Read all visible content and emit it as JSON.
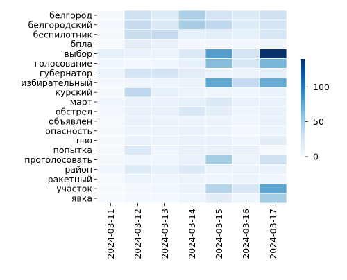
{
  "chart_data": {
    "type": "heatmap",
    "title": "",
    "xlabel": "",
    "ylabel": "",
    "x_categories": [
      "2024-03-11",
      "2024-03-12",
      "2024-03-13",
      "2024-03-14",
      "2024-03-15",
      "2024-03-16",
      "2024-03-17"
    ],
    "y_categories": [
      "белгород",
      "белгородский",
      "беспилотник",
      "бпла",
      "выбор",
      "голосование",
      "губернатор",
      "избирательный",
      "курский",
      "март",
      "обстрел",
      "объявлен",
      "опасность",
      "пво",
      "попытка",
      "проголосовать",
      "район",
      "ракетный",
      "участок",
      "явка"
    ],
    "values": [
      [
        2,
        28,
        18,
        45,
        25,
        20,
        28
      ],
      [
        3,
        35,
        20,
        48,
        38,
        18,
        25
      ],
      [
        2,
        32,
        35,
        12,
        14,
        12,
        22
      ],
      [
        1,
        14,
        10,
        3,
        4,
        3,
        6
      ],
      [
        12,
        10,
        8,
        20,
        80,
        25,
        140
      ],
      [
        5,
        3,
        5,
        12,
        60,
        22,
        65
      ],
      [
        8,
        25,
        25,
        15,
        8,
        8,
        12
      ],
      [
        3,
        5,
        5,
        8,
        75,
        35,
        72
      ],
      [
        2,
        38,
        12,
        8,
        6,
        5,
        10
      ],
      [
        5,
        10,
        10,
        12,
        20,
        10,
        10
      ],
      [
        3,
        10,
        10,
        22,
        14,
        5,
        10
      ],
      [
        2,
        10,
        8,
        8,
        8,
        5,
        10
      ],
      [
        2,
        8,
        8,
        10,
        8,
        3,
        8
      ],
      [
        2,
        10,
        8,
        10,
        10,
        5,
        15
      ],
      [
        2,
        20,
        5,
        10,
        10,
        10,
        2
      ],
      [
        2,
        5,
        5,
        10,
        50,
        8,
        28
      ],
      [
        5,
        18,
        12,
        20,
        8,
        8,
        10
      ],
      [
        1,
        8,
        5,
        8,
        5,
        8,
        5
      ],
      [
        2,
        3,
        5,
        8,
        42,
        22,
        75
      ],
      [
        1,
        3,
        3,
        5,
        15,
        5,
        50
      ]
    ],
    "colorbar": {
      "colormap": "Blues",
      "vmin": 0,
      "vmax": 140,
      "ticks": [
        0,
        50,
        100
      ]
    },
    "grid": true,
    "legend": "colorbar-right"
  }
}
